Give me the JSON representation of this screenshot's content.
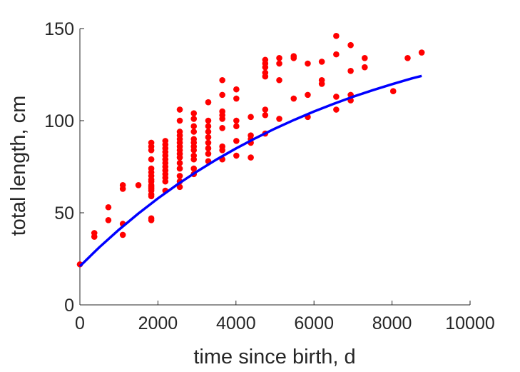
{
  "chart_data": {
    "type": "scatter",
    "title": "",
    "xlabel": "time since birth, d",
    "ylabel": "total length, cm",
    "xlim": [
      0,
      10000
    ],
    "ylim": [
      0,
      150
    ],
    "xticks": [
      0,
      2000,
      4000,
      6000,
      8000,
      10000
    ],
    "yticks": [
      0,
      50,
      100,
      150
    ],
    "xtick_labels": [
      "0",
      "2000",
      "4000",
      "6000",
      "8000",
      "10000"
    ],
    "ytick_labels": [
      "0",
      "50",
      "100",
      "150"
    ],
    "grid": false,
    "series": [
      {
        "kind": "points",
        "color": "#ff0000",
        "points": [
          [
            0,
            22
          ],
          [
            370,
            37
          ],
          [
            370,
            39
          ],
          [
            730,
            46
          ],
          [
            730,
            53
          ],
          [
            1100,
            38
          ],
          [
            1100,
            44
          ],
          [
            1100,
            63
          ],
          [
            1100,
            65
          ],
          [
            1500,
            65
          ],
          [
            1830,
            46
          ],
          [
            1830,
            47
          ],
          [
            1830,
            59
          ],
          [
            1830,
            60
          ],
          [
            1830,
            62
          ],
          [
            1830,
            63
          ],
          [
            1830,
            64
          ],
          [
            1830,
            65
          ],
          [
            1830,
            67
          ],
          [
            1830,
            68
          ],
          [
            1830,
            70
          ],
          [
            1830,
            72
          ],
          [
            1830,
            74
          ],
          [
            1830,
            79
          ],
          [
            1830,
            84
          ],
          [
            1830,
            86
          ],
          [
            1830,
            88
          ],
          [
            2190,
            62
          ],
          [
            2190,
            67
          ],
          [
            2190,
            69
          ],
          [
            2190,
            71
          ],
          [
            2190,
            73
          ],
          [
            2190,
            75
          ],
          [
            2190,
            77
          ],
          [
            2190,
            79
          ],
          [
            2190,
            81
          ],
          [
            2190,
            83
          ],
          [
            2190,
            85
          ],
          [
            2190,
            87
          ],
          [
            2190,
            89
          ],
          [
            2560,
            64
          ],
          [
            2560,
            67
          ],
          [
            2560,
            70
          ],
          [
            2560,
            74
          ],
          [
            2560,
            77
          ],
          [
            2560,
            80
          ],
          [
            2560,
            82
          ],
          [
            2560,
            84
          ],
          [
            2560,
            86
          ],
          [
            2560,
            88
          ],
          [
            2560,
            90
          ],
          [
            2560,
            92
          ],
          [
            2560,
            94
          ],
          [
            2560,
            100
          ],
          [
            2560,
            106
          ],
          [
            2920,
            71
          ],
          [
            2920,
            74
          ],
          [
            2920,
            79
          ],
          [
            2920,
            81
          ],
          [
            2920,
            84
          ],
          [
            2920,
            86
          ],
          [
            2920,
            88
          ],
          [
            2920,
            90
          ],
          [
            2920,
            94
          ],
          [
            2920,
            97
          ],
          [
            2920,
            101
          ],
          [
            2920,
            104
          ],
          [
            3290,
            78
          ],
          [
            3290,
            82
          ],
          [
            3290,
            85
          ],
          [
            3290,
            88
          ],
          [
            3290,
            91
          ],
          [
            3290,
            94
          ],
          [
            3290,
            97
          ],
          [
            3290,
            100
          ],
          [
            3290,
            110
          ],
          [
            3650,
            79
          ],
          [
            3650,
            84
          ],
          [
            3650,
            86
          ],
          [
            3650,
            96
          ],
          [
            3650,
            101
          ],
          [
            3650,
            103
          ],
          [
            3650,
            105
          ],
          [
            3650,
            114
          ],
          [
            3650,
            122
          ],
          [
            4010,
            81
          ],
          [
            4010,
            89
          ],
          [
            4010,
            97
          ],
          [
            4010,
            100
          ],
          [
            4010,
            112
          ],
          [
            4010,
            117
          ],
          [
            4380,
            80
          ],
          [
            4380,
            88
          ],
          [
            4380,
            90
          ],
          [
            4380,
            92
          ],
          [
            4380,
            102
          ],
          [
            4750,
            93
          ],
          [
            4750,
            103
          ],
          [
            4750,
            106
          ],
          [
            4750,
            124
          ],
          [
            4750,
            126
          ],
          [
            4750,
            129
          ],
          [
            4750,
            131
          ],
          [
            4750,
            133
          ],
          [
            5110,
            101
          ],
          [
            5110,
            122
          ],
          [
            5110,
            131
          ],
          [
            5110,
            134
          ],
          [
            5480,
            112
          ],
          [
            5480,
            134
          ],
          [
            5480,
            135
          ],
          [
            5840,
            102
          ],
          [
            5840,
            114
          ],
          [
            5840,
            131
          ],
          [
            6200,
            120
          ],
          [
            6200,
            122
          ],
          [
            6200,
            132
          ],
          [
            6570,
            106
          ],
          [
            6570,
            113
          ],
          [
            6570,
            136
          ],
          [
            6570,
            146
          ],
          [
            6940,
            111
          ],
          [
            6940,
            114
          ],
          [
            6940,
            127
          ],
          [
            6940,
            141
          ],
          [
            7300,
            129
          ],
          [
            7300,
            134
          ],
          [
            8030,
            116
          ],
          [
            8400,
            134
          ],
          [
            8760,
            137
          ]
        ]
      },
      {
        "kind": "line",
        "color": "#0000ff",
        "x": [
          0,
          500,
          1000,
          1500,
          2000,
          2500,
          3000,
          3500,
          4000,
          4500,
          5000,
          5500,
          6000,
          6500,
          7000,
          7500,
          8000,
          8500,
          8760
        ],
        "y": [
          21,
          31.3,
          40.8,
          49.6,
          57.8,
          65.4,
          72.4,
          78.9,
          84.9,
          90.5,
          95.7,
          100.5,
          105,
          109.1,
          113,
          116.5,
          119.8,
          122.9,
          124.3
        ]
      }
    ]
  }
}
